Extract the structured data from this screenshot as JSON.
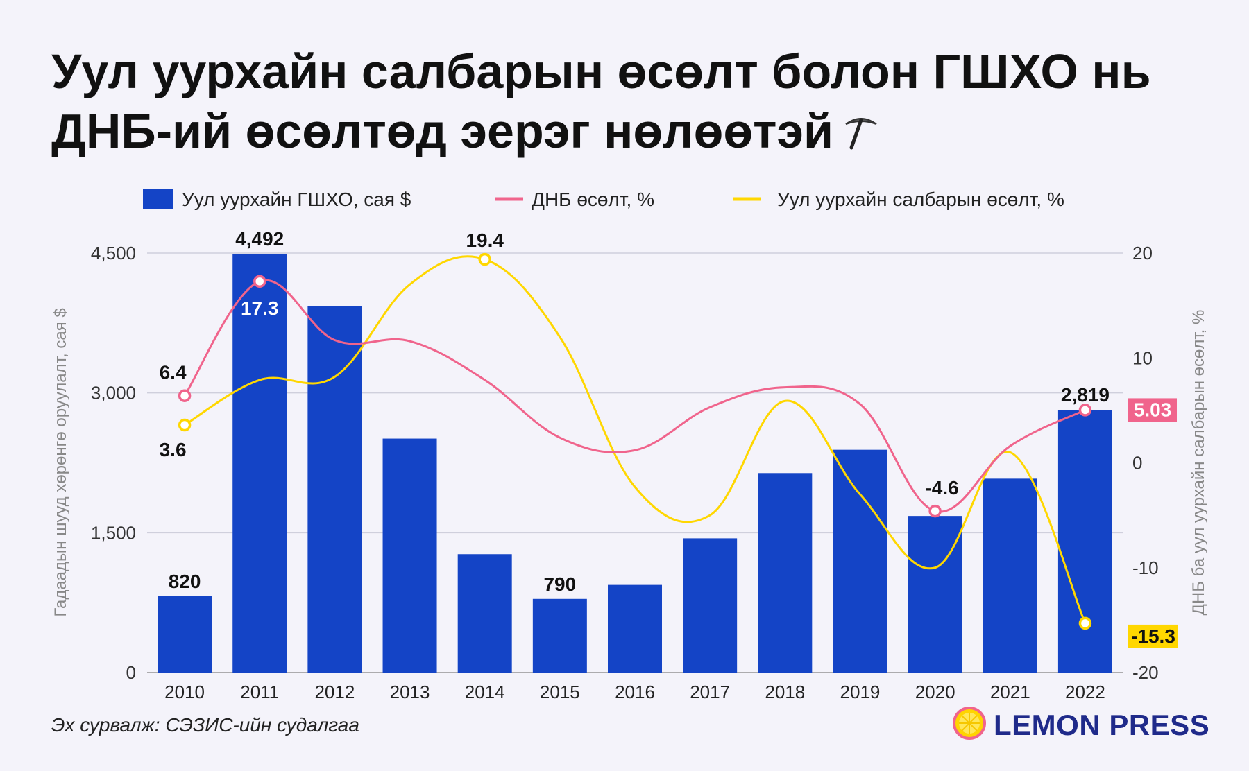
{
  "title_line1": "Уул уурхайн салбарын өсөлт болон ГШХО нь",
  "title_line2": "ДНБ-ий өсөлтөд эерэг нөлөөтэй",
  "source": "Эх сурвалж: СЭЗИС-ийн судалгаа",
  "brand": "LEMON PRESS",
  "icons": {
    "title_icon": "pickaxe-icon",
    "brand_icon": "lemon-slice-icon"
  },
  "colors": {
    "bar": "#1444c6",
    "gdp_line": "#f0648c",
    "mining_line": "#ffd700",
    "grid": "#cfcfdc",
    "background": "#f4f3fa"
  },
  "chart_data": {
    "type": "bar+line",
    "categories": [
      "2010",
      "2011",
      "2012",
      "2013",
      "2014",
      "2015",
      "2016",
      "2017",
      "2018",
      "2019",
      "2020",
      "2021",
      "2022"
    ],
    "series": [
      {
        "name": "Уул уурхайн ГШХО, сая $",
        "type": "bar",
        "axis": "left",
        "values": [
          820,
          4492,
          3930,
          2510,
          1270,
          790,
          940,
          1440,
          2140,
          2390,
          1680,
          2080,
          2819
        ]
      },
      {
        "name": "ДНБ өсөлт, %",
        "type": "line",
        "axis": "right",
        "values": [
          6.4,
          17.3,
          11.7,
          11.6,
          7.9,
          2.4,
          1.2,
          5.3,
          7.2,
          5.6,
          -4.6,
          1.6,
          5.03
        ]
      },
      {
        "name": "Уул уурхайн салбарын өсөлт, %",
        "type": "line",
        "axis": "right",
        "values": [
          3.6,
          7.9,
          8.2,
          17.0,
          19.4,
          12.0,
          -2.3,
          -5.0,
          5.9,
          -3.0,
          -10.0,
          1.0,
          -15.3
        ]
      }
    ],
    "data_labels": [
      {
        "series": 0,
        "index": 0,
        "text": "820"
      },
      {
        "series": 0,
        "index": 1,
        "text": "4,492"
      },
      {
        "series": 0,
        "index": 5,
        "text": "790"
      },
      {
        "series": 0,
        "index": 12,
        "text": "2,819"
      },
      {
        "series": 1,
        "index": 0,
        "text": "6.4"
      },
      {
        "series": 1,
        "index": 1,
        "text": "17.3"
      },
      {
        "series": 1,
        "index": 10,
        "text": "-4.6"
      },
      {
        "series": 1,
        "index": 12,
        "text": "5.03"
      },
      {
        "series": 2,
        "index": 0,
        "text": "3.6"
      },
      {
        "series": 2,
        "index": 4,
        "text": "19.4"
      },
      {
        "series": 2,
        "index": 12,
        "text": "-15.3"
      }
    ],
    "ylabel_left": "Гадаадын шууд хөрөнгө оруулалт, сая $",
    "ylabel_right": "ДНБ ба уул уурхайн салбарын өсөлт, %",
    "yticks_left": [
      "0",
      "1,500",
      "3,000",
      "4,500"
    ],
    "yticks_right": [
      "-20",
      "-10",
      "0",
      "10",
      "20"
    ],
    "ylim_left": [
      0,
      4500
    ],
    "ylim_right": [
      -20,
      20
    ],
    "grid": true,
    "legend_position": "top"
  }
}
